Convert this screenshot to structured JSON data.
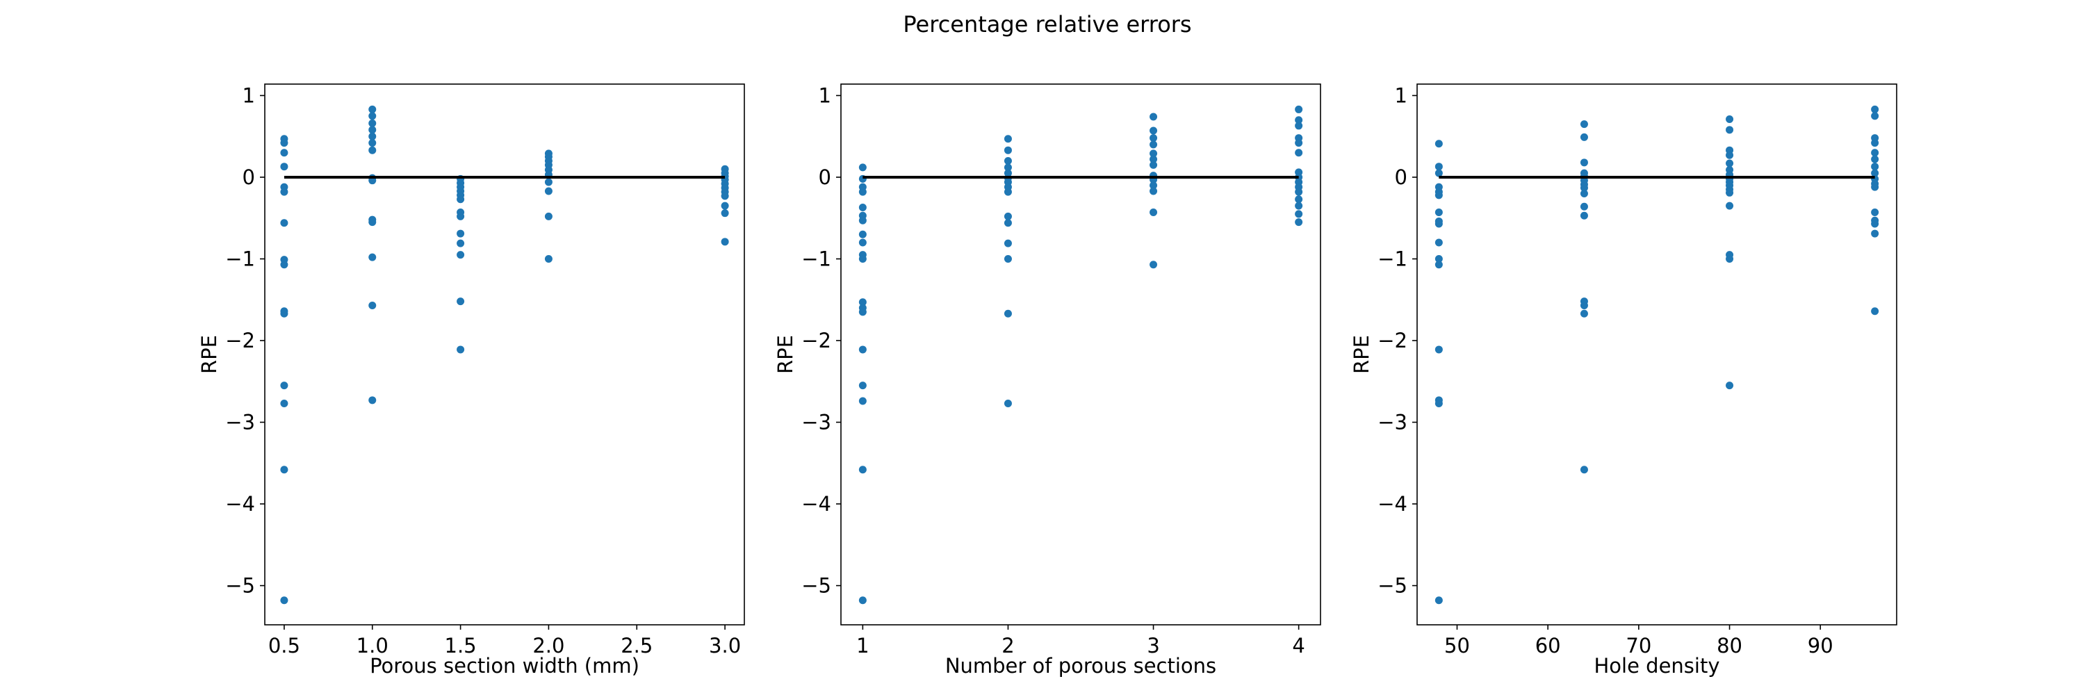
{
  "figure": {
    "suptitle": "Percentage relative errors",
    "colors": {
      "points": "#1f77b4",
      "zero_line": "#000000",
      "frame": "#000000"
    }
  },
  "chart_data": [
    {
      "type": "scatter",
      "title": "",
      "xlabel": "Porous section width (mm)",
      "ylabel": "RPE",
      "xlim": [
        0.39,
        3.11
      ],
      "ylim": [
        -5.48,
        1.14
      ],
      "xticks": [
        0.5,
        1.0,
        1.5,
        2.0,
        2.5,
        3.0
      ],
      "xtick_labels": [
        "0.5",
        "1.0",
        "1.5",
        "2.0",
        "2.5",
        "3.0"
      ],
      "yticks": [
        -5,
        -4,
        -3,
        -2,
        -1,
        0,
        1
      ],
      "ytick_labels": [
        "−5",
        "−4",
        "−3",
        "−2",
        "−1",
        "0",
        "1"
      ],
      "reference_line": {
        "y": 0,
        "x_from": 0.5,
        "x_to": 3.0
      },
      "grid": false,
      "points": [
        [
          0.5,
          0.47
        ],
        [
          0.5,
          0.42
        ],
        [
          0.5,
          0.3
        ],
        [
          0.5,
          0.13
        ],
        [
          0.5,
          -0.12
        ],
        [
          0.5,
          -0.18
        ],
        [
          0.5,
          -0.56
        ],
        [
          0.5,
          -1.01
        ],
        [
          0.5,
          -1.07
        ],
        [
          0.5,
          -1.64
        ],
        [
          0.5,
          -1.67
        ],
        [
          0.5,
          -2.55
        ],
        [
          0.5,
          -2.77
        ],
        [
          0.5,
          -3.58
        ],
        [
          0.5,
          -5.18
        ],
        [
          1.0,
          0.83
        ],
        [
          1.0,
          0.75
        ],
        [
          1.0,
          0.66
        ],
        [
          1.0,
          0.58
        ],
        [
          1.0,
          0.5
        ],
        [
          1.0,
          0.42
        ],
        [
          1.0,
          0.33
        ],
        [
          1.0,
          -0.01
        ],
        [
          1.0,
          -0.04
        ],
        [
          1.0,
          -0.52
        ],
        [
          1.0,
          -0.55
        ],
        [
          1.0,
          -0.98
        ],
        [
          1.0,
          -1.57
        ],
        [
          1.0,
          -2.73
        ],
        [
          1.5,
          -0.02
        ],
        [
          1.5,
          -0.07
        ],
        [
          1.5,
          -0.12
        ],
        [
          1.5,
          -0.17
        ],
        [
          1.5,
          -0.22
        ],
        [
          1.5,
          -0.27
        ],
        [
          1.5,
          -0.43
        ],
        [
          1.5,
          -0.48
        ],
        [
          1.5,
          -0.69
        ],
        [
          1.5,
          -0.81
        ],
        [
          1.5,
          -0.95
        ],
        [
          1.5,
          -1.52
        ],
        [
          1.5,
          -2.11
        ],
        [
          2.0,
          0.29
        ],
        [
          2.0,
          0.25
        ],
        [
          2.0,
          0.2
        ],
        [
          2.0,
          0.15
        ],
        [
          2.0,
          0.09
        ],
        [
          2.0,
          0.03
        ],
        [
          2.0,
          -0.06
        ],
        [
          2.0,
          -0.17
        ],
        [
          2.0,
          -0.48
        ],
        [
          2.0,
          -1.0
        ],
        [
          3.0,
          0.1
        ],
        [
          3.0,
          0.05
        ],
        [
          3.0,
          0.01
        ],
        [
          3.0,
          -0.03
        ],
        [
          3.0,
          -0.08
        ],
        [
          3.0,
          -0.13
        ],
        [
          3.0,
          -0.18
        ],
        [
          3.0,
          -0.23
        ],
        [
          3.0,
          -0.35
        ],
        [
          3.0,
          -0.44
        ],
        [
          3.0,
          -0.79
        ]
      ]
    },
    {
      "type": "scatter",
      "title": "",
      "xlabel": "Number of porous sections",
      "ylabel": "RPE",
      "xlim": [
        0.85,
        4.15
      ],
      "ylim": [
        -5.48,
        1.14
      ],
      "xticks": [
        1,
        2,
        3,
        4
      ],
      "xtick_labels": [
        "1",
        "2",
        "3",
        "4"
      ],
      "yticks": [
        -5,
        -4,
        -3,
        -2,
        -1,
        0,
        1
      ],
      "ytick_labels": [
        "−5",
        "−4",
        "−3",
        "−2",
        "−1",
        "0",
        "1"
      ],
      "reference_line": {
        "y": 0,
        "x_from": 1,
        "x_to": 4
      },
      "grid": false,
      "points": [
        [
          1,
          0.12
        ],
        [
          1,
          -0.02
        ],
        [
          1,
          -0.12
        ],
        [
          1,
          -0.18
        ],
        [
          1,
          -0.37
        ],
        [
          1,
          -0.47
        ],
        [
          1,
          -0.53
        ],
        [
          1,
          -0.7
        ],
        [
          1,
          -0.8
        ],
        [
          1,
          -0.95
        ],
        [
          1,
          -1.0
        ],
        [
          1,
          -1.53
        ],
        [
          1,
          -1.6
        ],
        [
          1,
          -1.65
        ],
        [
          1,
          -2.11
        ],
        [
          1,
          -2.55
        ],
        [
          1,
          -2.74
        ],
        [
          1,
          -3.58
        ],
        [
          1,
          -5.18
        ],
        [
          2,
          0.47
        ],
        [
          2,
          0.33
        ],
        [
          2,
          0.2
        ],
        [
          2,
          0.12
        ],
        [
          2,
          0.05
        ],
        [
          2,
          -0.01
        ],
        [
          2,
          -0.06
        ],
        [
          2,
          -0.12
        ],
        [
          2,
          -0.18
        ],
        [
          2,
          -0.48
        ],
        [
          2,
          -0.56
        ],
        [
          2,
          -0.81
        ],
        [
          2,
          -1.0
        ],
        [
          2,
          -1.67
        ],
        [
          2,
          -2.77
        ],
        [
          3,
          0.74
        ],
        [
          3,
          0.57
        ],
        [
          3,
          0.48
        ],
        [
          3,
          0.4
        ],
        [
          3,
          0.29
        ],
        [
          3,
          0.22
        ],
        [
          3,
          0.15
        ],
        [
          3,
          0.02
        ],
        [
          3,
          -0.03
        ],
        [
          3,
          -0.1
        ],
        [
          3,
          -0.17
        ],
        [
          3,
          -0.43
        ],
        [
          3,
          -1.07
        ],
        [
          4,
          0.83
        ],
        [
          4,
          0.7
        ],
        [
          4,
          0.63
        ],
        [
          4,
          0.48
        ],
        [
          4,
          0.42
        ],
        [
          4,
          0.3
        ],
        [
          4,
          0.06
        ],
        [
          4,
          0.0
        ],
        [
          4,
          -0.06
        ],
        [
          4,
          -0.12
        ],
        [
          4,
          -0.18
        ],
        [
          4,
          -0.27
        ],
        [
          4,
          -0.35
        ],
        [
          4,
          -0.45
        ],
        [
          4,
          -0.55
        ]
      ]
    },
    {
      "type": "scatter",
      "title": "",
      "xlabel": "Hole density",
      "ylabel": "RPE",
      "xlim": [
        45.6,
        98.4
      ],
      "ylim": [
        -5.48,
        1.14
      ],
      "xticks": [
        50,
        60,
        70,
        80,
        90
      ],
      "xtick_labels": [
        "50",
        "60",
        "70",
        "80",
        "90"
      ],
      "yticks": [
        -5,
        -4,
        -3,
        -2,
        -1,
        0,
        1
      ],
      "ytick_labels": [
        "−5",
        "−4",
        "−3",
        "−2",
        "−1",
        "0",
        "1"
      ],
      "reference_line": {
        "y": 0,
        "x_from": 48,
        "x_to": 96
      },
      "grid": false,
      "points": [
        [
          48,
          0.41
        ],
        [
          48,
          0.13
        ],
        [
          48,
          0.05
        ],
        [
          48,
          -0.12
        ],
        [
          48,
          -0.18
        ],
        [
          48,
          -0.22
        ],
        [
          48,
          -0.43
        ],
        [
          48,
          -0.54
        ],
        [
          48,
          -0.57
        ],
        [
          48,
          -0.8
        ],
        [
          48,
          -1.0
        ],
        [
          48,
          -1.07
        ],
        [
          48,
          -2.11
        ],
        [
          48,
          -2.73
        ],
        [
          48,
          -2.77
        ],
        [
          48,
          -5.18
        ],
        [
          64,
          0.65
        ],
        [
          64,
          0.49
        ],
        [
          64,
          0.18
        ],
        [
          64,
          0.05
        ],
        [
          64,
          0.01
        ],
        [
          64,
          -0.04
        ],
        [
          64,
          -0.09
        ],
        [
          64,
          -0.13
        ],
        [
          64,
          -0.2
        ],
        [
          64,
          -0.36
        ],
        [
          64,
          -0.47
        ],
        [
          64,
          -1.52
        ],
        [
          64,
          -1.57
        ],
        [
          64,
          -1.67
        ],
        [
          64,
          -3.58
        ],
        [
          80,
          0.71
        ],
        [
          80,
          0.58
        ],
        [
          80,
          0.33
        ],
        [
          80,
          0.27
        ],
        [
          80,
          0.17
        ],
        [
          80,
          0.09
        ],
        [
          80,
          0.03
        ],
        [
          80,
          -0.02
        ],
        [
          80,
          -0.06
        ],
        [
          80,
          -0.1
        ],
        [
          80,
          -0.15
        ],
        [
          80,
          -0.19
        ],
        [
          80,
          -0.35
        ],
        [
          80,
          -0.95
        ],
        [
          80,
          -1.0
        ],
        [
          80,
          -2.55
        ],
        [
          96,
          0.83
        ],
        [
          96,
          0.75
        ],
        [
          96,
          0.48
        ],
        [
          96,
          0.42
        ],
        [
          96,
          0.3
        ],
        [
          96,
          0.22
        ],
        [
          96,
          0.13
        ],
        [
          96,
          0.05
        ],
        [
          96,
          -0.02
        ],
        [
          96,
          -0.08
        ],
        [
          96,
          -0.12
        ],
        [
          96,
          -0.43
        ],
        [
          96,
          -0.53
        ],
        [
          96,
          -0.57
        ],
        [
          96,
          -0.69
        ],
        [
          96,
          -1.64
        ]
      ]
    }
  ]
}
